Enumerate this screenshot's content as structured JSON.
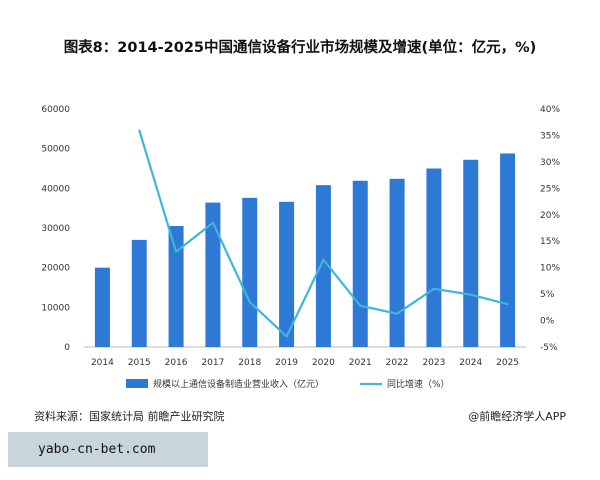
{
  "chart_data": {
    "type": "bar+line",
    "title": "图表8：2014-2025中国通信设备行业市场规模及增速(单位：亿元，%)",
    "categories": [
      "2014",
      "2015",
      "2016",
      "2017",
      "2018",
      "2019",
      "2020",
      "2021",
      "2022",
      "2023",
      "2024",
      "2025"
    ],
    "series": [
      {
        "name": "规模以上通信设备制造业营业收入（亿元）",
        "type": "bar",
        "axis": "left",
        "values": [
          20000,
          27000,
          30500,
          36400,
          37600,
          36600,
          40800,
          41900,
          42400,
          45000,
          47200,
          48800
        ]
      },
      {
        "name": "同比增速（%）",
        "type": "line",
        "axis": "right",
        "values": [
          null,
          36,
          13,
          18.5,
          3.5,
          -3,
          11.5,
          2.8,
          1.3,
          6,
          4.9,
          3.1
        ]
      }
    ],
    "y_left": {
      "min": 0,
      "max": 60000,
      "ticks": [
        0,
        10000,
        20000,
        30000,
        40000,
        50000,
        60000
      ]
    },
    "y_right": {
      "min": -5,
      "max": 40,
      "ticks": [
        -5,
        0,
        5,
        10,
        15,
        20,
        25,
        30,
        35,
        40
      ],
      "suffix": "%"
    },
    "legend_position": "bottom",
    "colors": {
      "bar": "#2f79d6",
      "line": "#3fb6d8"
    }
  },
  "footer": {
    "source": "资料来源：国家统计局 前瞻产业研究院",
    "credit": "@前瞻经济学人APP"
  },
  "watermark_text": "yabo-cn-bet.com"
}
